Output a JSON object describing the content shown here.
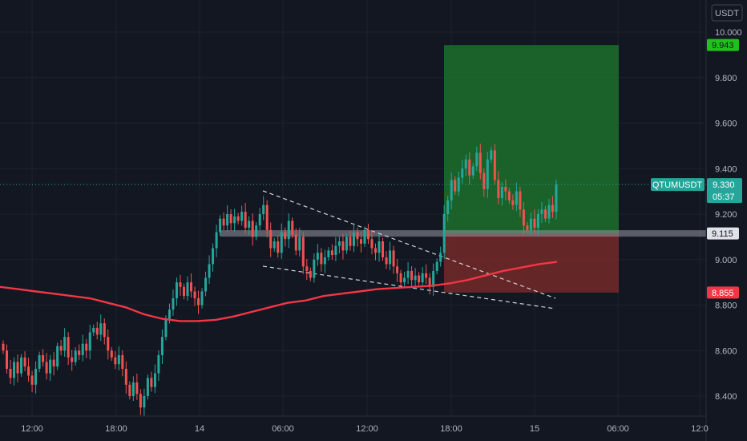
{
  "currency_button": "USDT",
  "symbol": "QTUMUSDT",
  "price_labels": {
    "last": "9.330",
    "countdown": "05:37",
    "target": "9.943",
    "entry": "9.115",
    "stop": "8.855"
  },
  "colors": {
    "background": "#131722",
    "up": "#26a69a",
    "down": "#ef5350",
    "ma": "#f23645",
    "profit_zone": "#1e7b2e",
    "loss_zone": "#7b2a2a",
    "target_tag": "#21c11c",
    "stop_tag": "#f23645",
    "entry_line": "#9598a1",
    "last_tag": "#26a69a"
  },
  "chart_data": {
    "type": "candlestick",
    "pair": "QTUMUSDT",
    "quote_currency": "USDT",
    "ylim": [
      8.35,
      10.05
    ],
    "y_ticks": [
      "8.400",
      "8.600",
      "8.800",
      "9.000",
      "9.200",
      "9.400",
      "9.600",
      "9.800",
      "10.000"
    ],
    "x_ticks": [
      "12:00",
      "18:00",
      "14",
      "06:00",
      "12:00",
      "18:00",
      "15",
      "06:00",
      "12:0"
    ],
    "candles_close": [
      8.6,
      8.52,
      8.48,
      8.55,
      8.5,
      8.57,
      8.53,
      8.49,
      8.45,
      8.52,
      8.58,
      8.55,
      8.5,
      8.56,
      8.53,
      8.62,
      8.6,
      8.66,
      8.57,
      8.55,
      8.6,
      8.58,
      8.63,
      8.6,
      8.68,
      8.7,
      8.67,
      8.72,
      8.66,
      8.6,
      8.57,
      8.54,
      8.58,
      8.52,
      8.45,
      8.4,
      8.46,
      8.41,
      8.35,
      8.4,
      8.48,
      8.44,
      8.5,
      8.58,
      8.66,
      8.74,
      8.78,
      8.83,
      8.9,
      8.88,
      8.84,
      8.9,
      8.86,
      8.83,
      8.8,
      8.86,
      8.92,
      8.98,
      9.05,
      9.12,
      9.18,
      9.15,
      9.2,
      9.16,
      9.19,
      9.17,
      9.21,
      9.14,
      9.17,
      9.1,
      9.15,
      9.2,
      9.24,
      9.13,
      9.05,
      9.08,
      9.03,
      9.12,
      9.09,
      9.17,
      9.11,
      9.04,
      9.1,
      8.97,
      8.95,
      8.92,
      9.0,
      9.03,
      8.98,
      9.01,
      9.04,
      9.02,
      9.06,
      9.08,
      9.04,
      9.1,
      9.06,
      9.12,
      9.09,
      9.07,
      9.13,
      9.09,
      9.05,
      9.03,
      9.08,
      9.01,
      8.98,
      9.04,
      8.97,
      8.94,
      8.9,
      8.92,
      8.95,
      8.91,
      8.93,
      8.9,
      8.94,
      8.92,
      8.88,
      8.95,
      8.99,
      9.03,
      9.2,
      9.26,
      9.35,
      9.3,
      9.36,
      9.4,
      9.44,
      9.37,
      9.41,
      9.47,
      9.38,
      9.31,
      9.44,
      9.48,
      9.35,
      9.27,
      9.32,
      9.3,
      9.26,
      9.24,
      9.3,
      9.22,
      9.15,
      9.13,
      9.18,
      9.14,
      9.2,
      9.22,
      9.18,
      9.24,
      9.21,
      9.33
    ],
    "ma_series": {
      "name": "",
      "values": [
        8.88,
        8.87,
        8.86,
        8.85,
        8.84,
        8.83,
        8.81,
        8.79,
        8.76,
        8.74,
        8.73,
        8.73,
        8.735,
        8.75,
        8.77,
        8.79,
        8.81,
        8.82,
        8.84,
        8.85,
        8.86,
        8.87,
        8.875,
        8.88,
        8.885,
        8.895,
        8.91,
        8.93,
        8.95,
        8.965,
        8.98,
        8.99
      ]
    },
    "pattern": "falling-wedge",
    "position": {
      "type": "long",
      "entry": 9.115,
      "target": 9.943,
      "stop": 8.855
    },
    "last_price": 9.33,
    "grid": true
  }
}
